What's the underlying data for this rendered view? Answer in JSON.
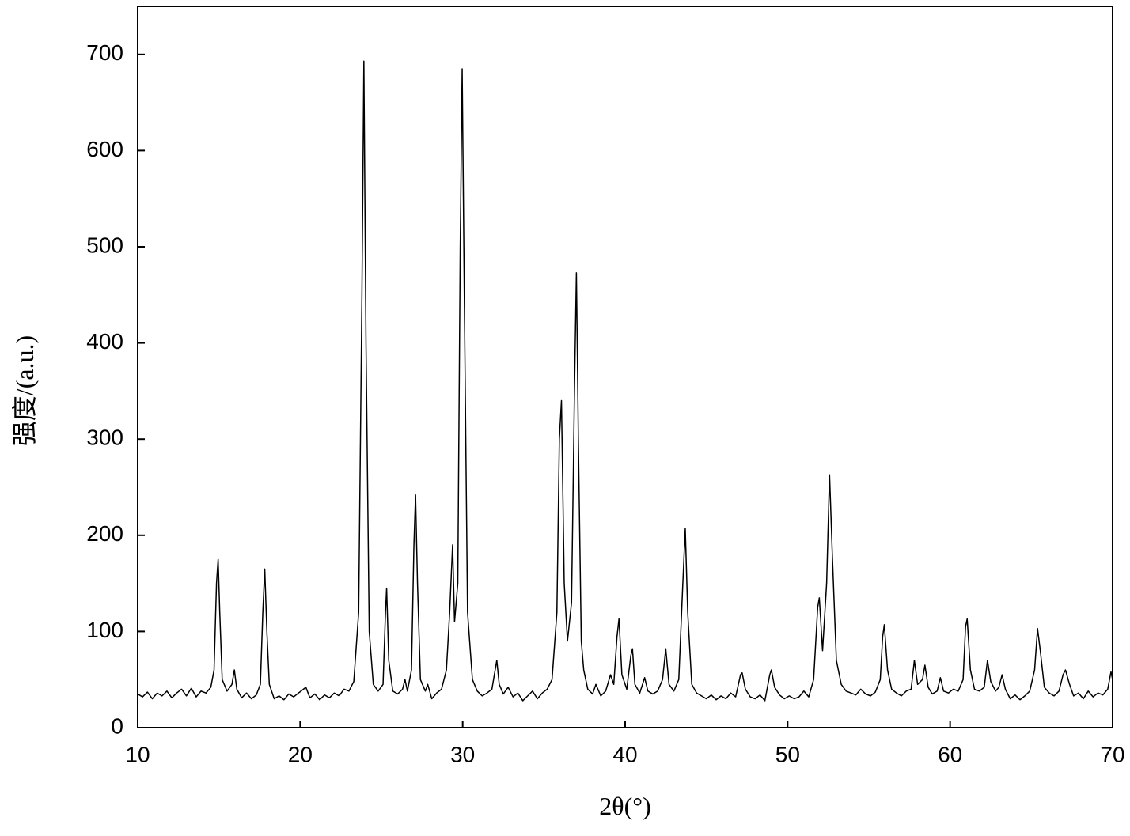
{
  "chart_data": {
    "type": "line",
    "x_label": "2θ(°)",
    "y_label": "强度/(a.u.)",
    "color": "#000000",
    "xlim": [
      10,
      70
    ],
    "ylim": [
      0,
      750
    ],
    "xticks": [
      10,
      20,
      30,
      40,
      50,
      60,
      70
    ],
    "yticks": [
      0,
      100,
      200,
      300,
      400,
      500,
      600,
      700
    ],
    "x": [
      10,
      10.3,
      10.6,
      10.9,
      11.2,
      11.5,
      11.8,
      12.1,
      12.4,
      12.7,
      13.0,
      13.3,
      13.6,
      13.9,
      14.2,
      14.5,
      14.7,
      14.85,
      14.95,
      15.05,
      15.2,
      15.5,
      15.8,
      15.95,
      16.1,
      16.4,
      16.7,
      17.0,
      17.3,
      17.55,
      17.7,
      17.82,
      17.95,
      18.1,
      18.4,
      18.7,
      19.0,
      19.3,
      19.6,
      19.9,
      20.2,
      20.35,
      20.6,
      20.9,
      21.2,
      21.5,
      21.8,
      22.1,
      22.4,
      22.7,
      23.0,
      23.3,
      23.6,
      23.8,
      23.92,
      24.05,
      24.25,
      24.5,
      24.8,
      25.1,
      25.25,
      25.32,
      25.45,
      25.7,
      26.0,
      26.3,
      26.45,
      26.6,
      26.85,
      27.0,
      27.1,
      27.22,
      27.4,
      27.7,
      27.85,
      28.1,
      28.4,
      28.7,
      29.0,
      29.2,
      29.38,
      29.5,
      29.7,
      29.85,
      29.97,
      30.1,
      30.3,
      30.6,
      30.9,
      31.2,
      31.5,
      31.8,
      32.0,
      32.1,
      32.25,
      32.5,
      32.8,
      33.1,
      33.4,
      33.7,
      34.0,
      34.3,
      34.6,
      34.9,
      35.2,
      35.5,
      35.8,
      35.95,
      36.08,
      36.25,
      36.45,
      36.7,
      36.88,
      37.0,
      37.12,
      37.3,
      37.45,
      37.7,
      38.0,
      38.2,
      38.5,
      38.8,
      39.1,
      39.3,
      39.5,
      39.62,
      39.8,
      40.1,
      40.35,
      40.45,
      40.6,
      40.9,
      41.2,
      41.4,
      41.7,
      42.0,
      42.3,
      42.5,
      42.7,
      43.0,
      43.3,
      43.55,
      43.7,
      43.85,
      44.1,
      44.4,
      44.7,
      45.0,
      45.3,
      45.6,
      45.9,
      46.2,
      46.5,
      46.8,
      47.1,
      47.2,
      47.4,
      47.7,
      48.0,
      48.3,
      48.6,
      48.9,
      49.0,
      49.2,
      49.5,
      49.8,
      50.1,
      50.4,
      50.7,
      51.0,
      51.3,
      51.6,
      51.85,
      51.95,
      52.15,
      52.4,
      52.58,
      52.75,
      53.0,
      53.3,
      53.6,
      53.9,
      54.2,
      54.5,
      54.8,
      55.1,
      55.4,
      55.7,
      55.85,
      55.95,
      56.15,
      56.4,
      56.7,
      57.0,
      57.3,
      57.6,
      57.8,
      58.0,
      58.3,
      58.45,
      58.65,
      58.9,
      59.2,
      59.4,
      59.6,
      59.9,
      60.2,
      60.5,
      60.8,
      60.95,
      61.05,
      61.25,
      61.5,
      61.8,
      62.1,
      62.3,
      62.5,
      62.8,
      63.0,
      63.2,
      63.4,
      63.7,
      64.0,
      64.3,
      64.6,
      64.9,
      65.2,
      65.38,
      65.55,
      65.8,
      66.1,
      66.4,
      66.7,
      66.95,
      67.1,
      67.35,
      67.6,
      67.9,
      68.2,
      68.5,
      68.8,
      69.1,
      69.4,
      69.7,
      69.9,
      70.0
    ],
    "values": [
      35,
      32,
      37,
      30,
      36,
      33,
      38,
      31,
      36,
      40,
      33,
      41,
      32,
      38,
      36,
      42,
      60,
      150,
      175,
      120,
      50,
      38,
      45,
      60,
      40,
      31,
      36,
      30,
      34,
      45,
      120,
      165,
      100,
      45,
      30,
      33,
      29,
      35,
      32,
      36,
      40,
      42,
      31,
      35,
      29,
      34,
      31,
      36,
      33,
      40,
      38,
      48,
      120,
      450,
      693,
      400,
      100,
      45,
      38,
      45,
      120,
      145,
      70,
      38,
      35,
      40,
      50,
      38,
      60,
      190,
      242,
      150,
      50,
      38,
      45,
      30,
      36,
      40,
      60,
      120,
      190,
      110,
      150,
      500,
      685,
      450,
      120,
      50,
      38,
      33,
      36,
      40,
      60,
      70,
      45,
      35,
      42,
      32,
      36,
      28,
      33,
      38,
      30,
      36,
      40,
      50,
      120,
      300,
      340,
      150,
      90,
      130,
      350,
      473,
      300,
      90,
      60,
      40,
      35,
      45,
      33,
      38,
      55,
      45,
      95,
      113,
      55,
      40,
      75,
      82,
      45,
      36,
      52,
      38,
      35,
      38,
      50,
      82,
      45,
      38,
      50,
      150,
      207,
      120,
      45,
      36,
      33,
      30,
      34,
      29,
      33,
      30,
      36,
      32,
      55,
      57,
      40,
      32,
      30,
      34,
      28,
      55,
      60,
      42,
      34,
      30,
      33,
      30,
      32,
      38,
      32,
      50,
      125,
      135,
      80,
      150,
      263,
      180,
      70,
      45,
      38,
      36,
      34,
      40,
      35,
      33,
      37,
      50,
      95,
      107,
      60,
      40,
      36,
      33,
      38,
      40,
      70,
      45,
      50,
      65,
      42,
      35,
      38,
      52,
      38,
      36,
      40,
      38,
      50,
      105,
      113,
      60,
      40,
      38,
      42,
      70,
      48,
      38,
      42,
      55,
      40,
      30,
      34,
      29,
      33,
      38,
      60,
      103,
      80,
      42,
      36,
      33,
      38,
      55,
      60,
      45,
      33,
      36,
      30,
      38,
      32,
      36,
      34,
      40,
      58,
      50
    ]
  }
}
